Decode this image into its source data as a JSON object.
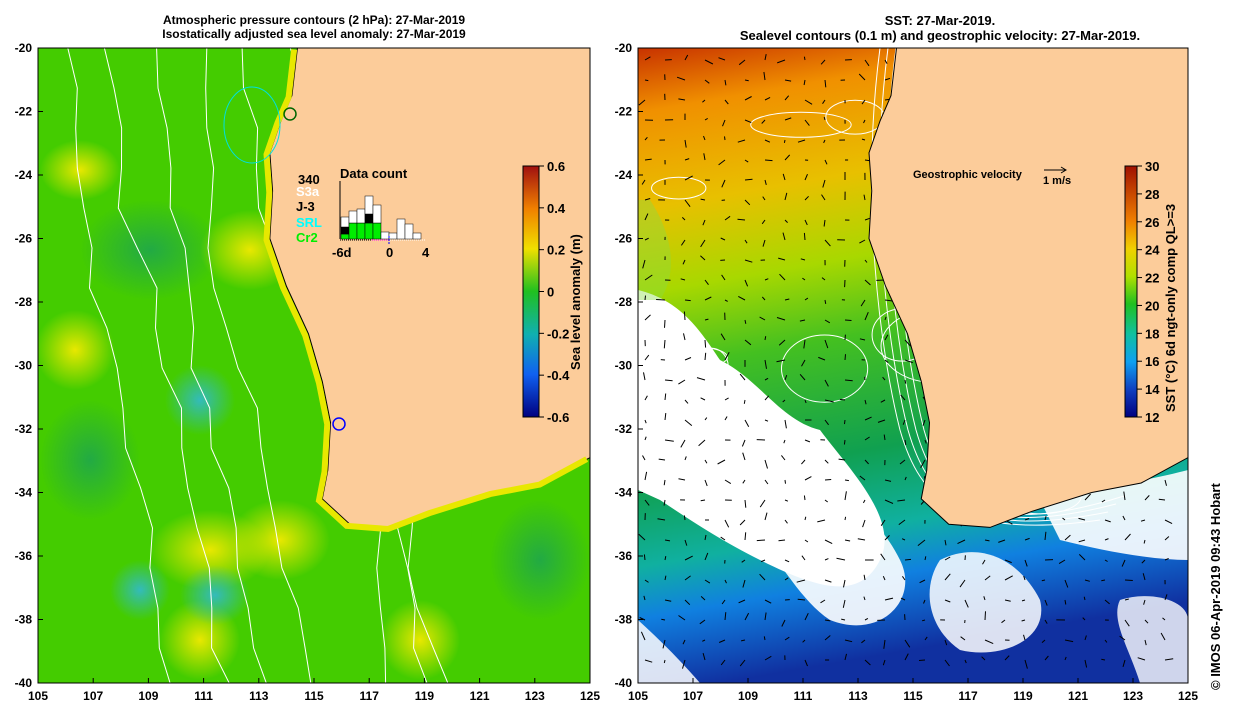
{
  "left_panel": {
    "title_line1": "Atmospheric pressure contours (2 hPa): 27-Mar-2019",
    "title_line2": "Isostatically adjusted sea level anomaly: 27-Mar-2019",
    "colorbar": {
      "label": "Sea level anomaly (m)",
      "ticks": [
        "0.6",
        "0.4",
        "0.2",
        "0",
        "-0.2",
        "-0.4",
        "-0.6"
      ],
      "min": -0.6,
      "max": 0.6
    },
    "data_count": {
      "title": "Data count",
      "total": "340",
      "satellites": [
        {
          "name": "S3a",
          "color": "#ffffff"
        },
        {
          "name": "J-3",
          "color": "#000000"
        },
        {
          "name": "SRL",
          "color": "#00ffff"
        },
        {
          "name": "Cr2",
          "color": "#00ff00"
        }
      ],
      "axis_labels": [
        "-6d",
        "0",
        "4"
      ]
    }
  },
  "right_panel": {
    "title_line1": "SST: 27-Mar-2019.",
    "title_line2": "Sealevel contours (0.1 m) and geostrophic velocity: 27-Mar-2019.",
    "velocity_legend": "Geostrophic velocity",
    "velocity_scale": "1 m/s",
    "colorbar": {
      "label": "SST (°C) 6d ngt-only comp QL>=3",
      "ticks": [
        "30",
        "28",
        "26",
        "24",
        "22",
        "20",
        "18",
        "16",
        "14",
        "12"
      ],
      "min": 12,
      "max": 30
    }
  },
  "axes": {
    "lon_ticks": [
      "105",
      "107",
      "109",
      "111",
      "113",
      "115",
      "117",
      "119",
      "121",
      "123",
      "125"
    ],
    "lat_ticks": [
      "-20",
      "-22",
      "-24",
      "-26",
      "-28",
      "-30",
      "-32",
      "-34",
      "-36",
      "-38",
      "-40"
    ]
  },
  "credit": "© IMOS 06-Apr-2019 09:43 Hobart",
  "colors": {
    "land": "#fccc9a",
    "sla_ocean": "#44cc00",
    "land_edge": "#000000"
  },
  "coastline": [
    [
      114.4,
      -20
    ],
    [
      114.2,
      -21.5
    ],
    [
      113.8,
      -22.3
    ],
    [
      113.4,
      -23.3
    ],
    [
      113.5,
      -24.5
    ],
    [
      113.4,
      -26
    ],
    [
      114.0,
      -27.5
    ],
    [
      114.8,
      -29
    ],
    [
      115.3,
      -30.5
    ],
    [
      115.6,
      -31.8
    ],
    [
      115.5,
      -33.3
    ],
    [
      115.3,
      -34.2
    ],
    [
      116.3,
      -35.0
    ],
    [
      117.8,
      -35.1
    ],
    [
      119.3,
      -34.6
    ],
    [
      121.5,
      -34.0
    ],
    [
      123.3,
      -33.7
    ],
    [
      125,
      -32.9
    ]
  ]
}
